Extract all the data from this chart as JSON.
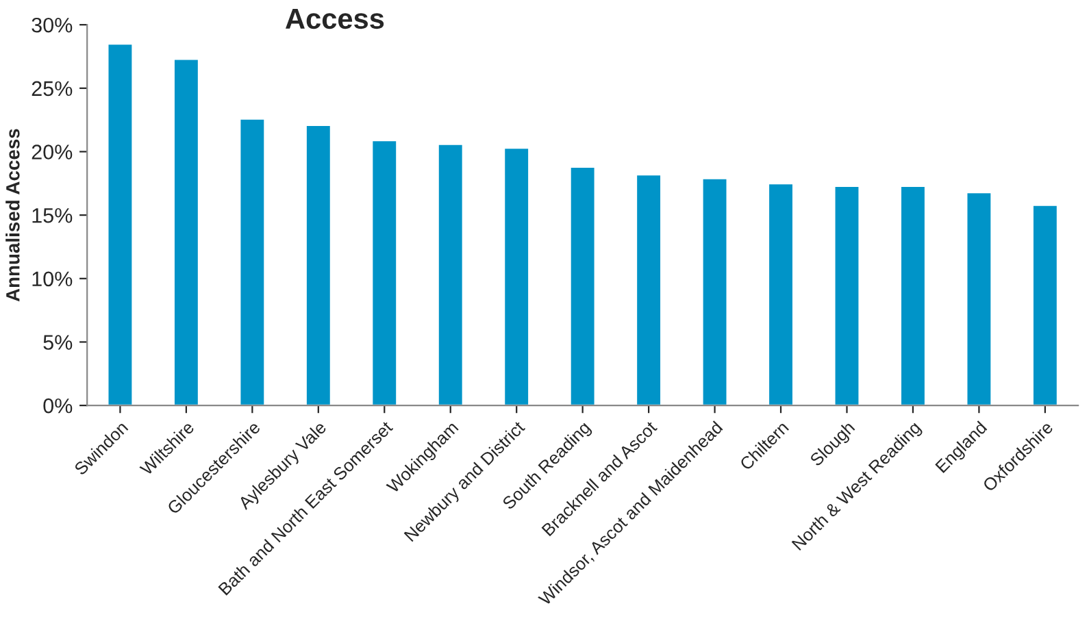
{
  "chart_data": {
    "type": "bar",
    "title": "Access",
    "ylabel": "Annualised Access",
    "categories": [
      "Swindon",
      "Wiltshire",
      "Gloucestershire",
      "Aylesbury Vale",
      "Bath and North East Somerset",
      "Wokingham",
      "Newbury and District",
      "South Reading",
      "Bracknell and Ascot",
      "Windsor, Ascot and Maidenhead",
      "Chiltern",
      "Slough",
      "North & West Reading",
      "England",
      "Oxfordshire"
    ],
    "values": [
      28.5,
      27.3,
      22.6,
      22.1,
      20.9,
      20.6,
      20.3,
      18.8,
      18.2,
      17.9,
      17.5,
      17.3,
      17.3,
      16.8,
      15.8
    ],
    "color": "#0094c8",
    "ylim": [
      0,
      30
    ],
    "yticks": [
      {
        "value": 0,
        "label": "0%"
      },
      {
        "value": 5,
        "label": "5%"
      },
      {
        "value": 10,
        "label": "10%"
      },
      {
        "value": 15,
        "label": "15%"
      },
      {
        "value": 20,
        "label": "20%"
      },
      {
        "value": 25,
        "label": "25%"
      },
      {
        "value": 30,
        "label": "30%"
      }
    ],
    "grid": false,
    "legend": false
  }
}
